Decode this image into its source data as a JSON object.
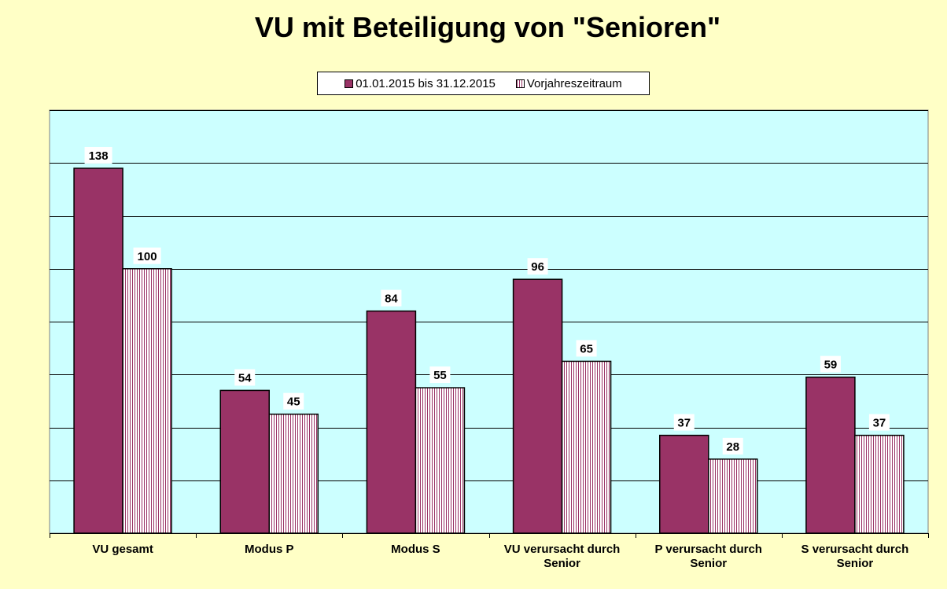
{
  "chart_data": {
    "type": "bar",
    "title": "VU mit Beteiligung von \"Senioren\"",
    "categories": [
      [
        "VU gesamt"
      ],
      [
        "Modus P"
      ],
      [
        "Modus S"
      ],
      [
        "VU verursacht durch",
        "Senior"
      ],
      [
        "P verursacht durch",
        "Senior"
      ],
      [
        "S verursacht durch",
        "Senior"
      ]
    ],
    "series": [
      {
        "name": "01.01.2015 bis 31.12.2015",
        "values": [
          138,
          54,
          84,
          96,
          37,
          59
        ],
        "color": "#993366",
        "pattern": "solid"
      },
      {
        "name": "Vorjahreszeitraum",
        "values": [
          100,
          45,
          55,
          65,
          28,
          37
        ],
        "color": "#FFFFFF",
        "pattern": "vertical-stripes",
        "stripe_color": "#993366"
      }
    ],
    "ylim": [
      0,
      160
    ],
    "y_gridline_step": 20,
    "y_tick_labels_shown": false,
    "grid": true,
    "legend_position": "top-center",
    "plot_background": "#CCFFFF",
    "page_background": "#FFFFC6"
  }
}
